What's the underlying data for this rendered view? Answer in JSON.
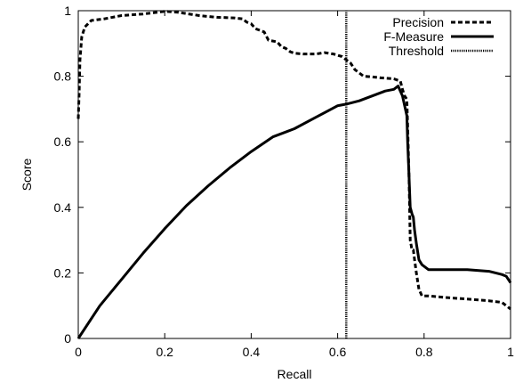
{
  "chart_data": {
    "type": "line",
    "xlabel": "Recall",
    "ylabel": "Score",
    "xlim": [
      0,
      1
    ],
    "ylim": [
      0,
      1
    ],
    "x_ticks": [
      "0",
      "0.2",
      "0.4",
      "0.6",
      "0.8",
      "1"
    ],
    "y_ticks": [
      "0",
      "0.2",
      "0.4",
      "0.6",
      "0.8",
      "1"
    ],
    "grid": false,
    "legend_position": "top-right",
    "series": [
      {
        "name": "Precision",
        "style": "dashed",
        "color": "#000000",
        "points": [
          [
            0.0,
            0.67
          ],
          [
            0.002,
            0.75
          ],
          [
            0.004,
            0.85
          ],
          [
            0.008,
            0.92
          ],
          [
            0.015,
            0.95
          ],
          [
            0.03,
            0.97
          ],
          [
            0.06,
            0.975
          ],
          [
            0.1,
            0.985
          ],
          [
            0.15,
            0.99
          ],
          [
            0.2,
            0.998
          ],
          [
            0.23,
            0.995
          ],
          [
            0.28,
            0.985
          ],
          [
            0.32,
            0.98
          ],
          [
            0.36,
            0.978
          ],
          [
            0.38,
            0.975
          ],
          [
            0.39,
            0.965
          ],
          [
            0.4,
            0.96
          ],
          [
            0.41,
            0.945
          ],
          [
            0.43,
            0.935
          ],
          [
            0.44,
            0.91
          ],
          [
            0.46,
            0.905
          ],
          [
            0.47,
            0.89
          ],
          [
            0.48,
            0.885
          ],
          [
            0.49,
            0.875
          ],
          [
            0.5,
            0.87
          ],
          [
            0.52,
            0.868
          ],
          [
            0.55,
            0.868
          ],
          [
            0.57,
            0.872
          ],
          [
            0.59,
            0.868
          ],
          [
            0.61,
            0.86
          ],
          [
            0.63,
            0.84
          ],
          [
            0.64,
            0.82
          ],
          [
            0.65,
            0.81
          ],
          [
            0.66,
            0.8
          ],
          [
            0.68,
            0.798
          ],
          [
            0.7,
            0.795
          ],
          [
            0.73,
            0.792
          ],
          [
            0.745,
            0.785
          ],
          [
            0.75,
            0.76
          ],
          [
            0.755,
            0.74
          ],
          [
            0.76,
            0.73
          ],
          [
            0.762,
            0.65
          ],
          [
            0.765,
            0.5
          ],
          [
            0.768,
            0.3
          ],
          [
            0.772,
            0.27
          ],
          [
            0.775,
            0.27
          ],
          [
            0.778,
            0.24
          ],
          [
            0.782,
            0.2
          ],
          [
            0.788,
            0.15
          ],
          [
            0.795,
            0.13
          ],
          [
            0.81,
            0.13
          ],
          [
            0.85,
            0.125
          ],
          [
            0.9,
            0.12
          ],
          [
            0.95,
            0.115
          ],
          [
            0.98,
            0.11
          ],
          [
            0.99,
            0.1
          ],
          [
            1.0,
            0.09
          ]
        ]
      },
      {
        "name": "F-Measure",
        "style": "solid",
        "color": "#000000",
        "points": [
          [
            0.0,
            0.0
          ],
          [
            0.05,
            0.1
          ],
          [
            0.1,
            0.18
          ],
          [
            0.15,
            0.26
          ],
          [
            0.2,
            0.335
          ],
          [
            0.25,
            0.405
          ],
          [
            0.3,
            0.465
          ],
          [
            0.35,
            0.52
          ],
          [
            0.4,
            0.57
          ],
          [
            0.45,
            0.615
          ],
          [
            0.48,
            0.63
          ],
          [
            0.5,
            0.64
          ],
          [
            0.55,
            0.675
          ],
          [
            0.6,
            0.71
          ],
          [
            0.62,
            0.715
          ],
          [
            0.65,
            0.725
          ],
          [
            0.68,
            0.74
          ],
          [
            0.71,
            0.755
          ],
          [
            0.73,
            0.76
          ],
          [
            0.74,
            0.77
          ],
          [
            0.75,
            0.74
          ],
          [
            0.76,
            0.68
          ],
          [
            0.762,
            0.6
          ],
          [
            0.765,
            0.5
          ],
          [
            0.768,
            0.4
          ],
          [
            0.772,
            0.38
          ],
          [
            0.775,
            0.37
          ],
          [
            0.778,
            0.33
          ],
          [
            0.782,
            0.29
          ],
          [
            0.788,
            0.24
          ],
          [
            0.795,
            0.225
          ],
          [
            0.81,
            0.21
          ],
          [
            0.85,
            0.21
          ],
          [
            0.9,
            0.21
          ],
          [
            0.95,
            0.205
          ],
          [
            0.98,
            0.195
          ],
          [
            0.99,
            0.19
          ],
          [
            1.0,
            0.17
          ]
        ]
      },
      {
        "name": "Threshold",
        "style": "dotted",
        "color": "#000000",
        "points": [
          [
            0.62,
            0.0
          ],
          [
            0.62,
            1.0
          ]
        ]
      }
    ]
  }
}
